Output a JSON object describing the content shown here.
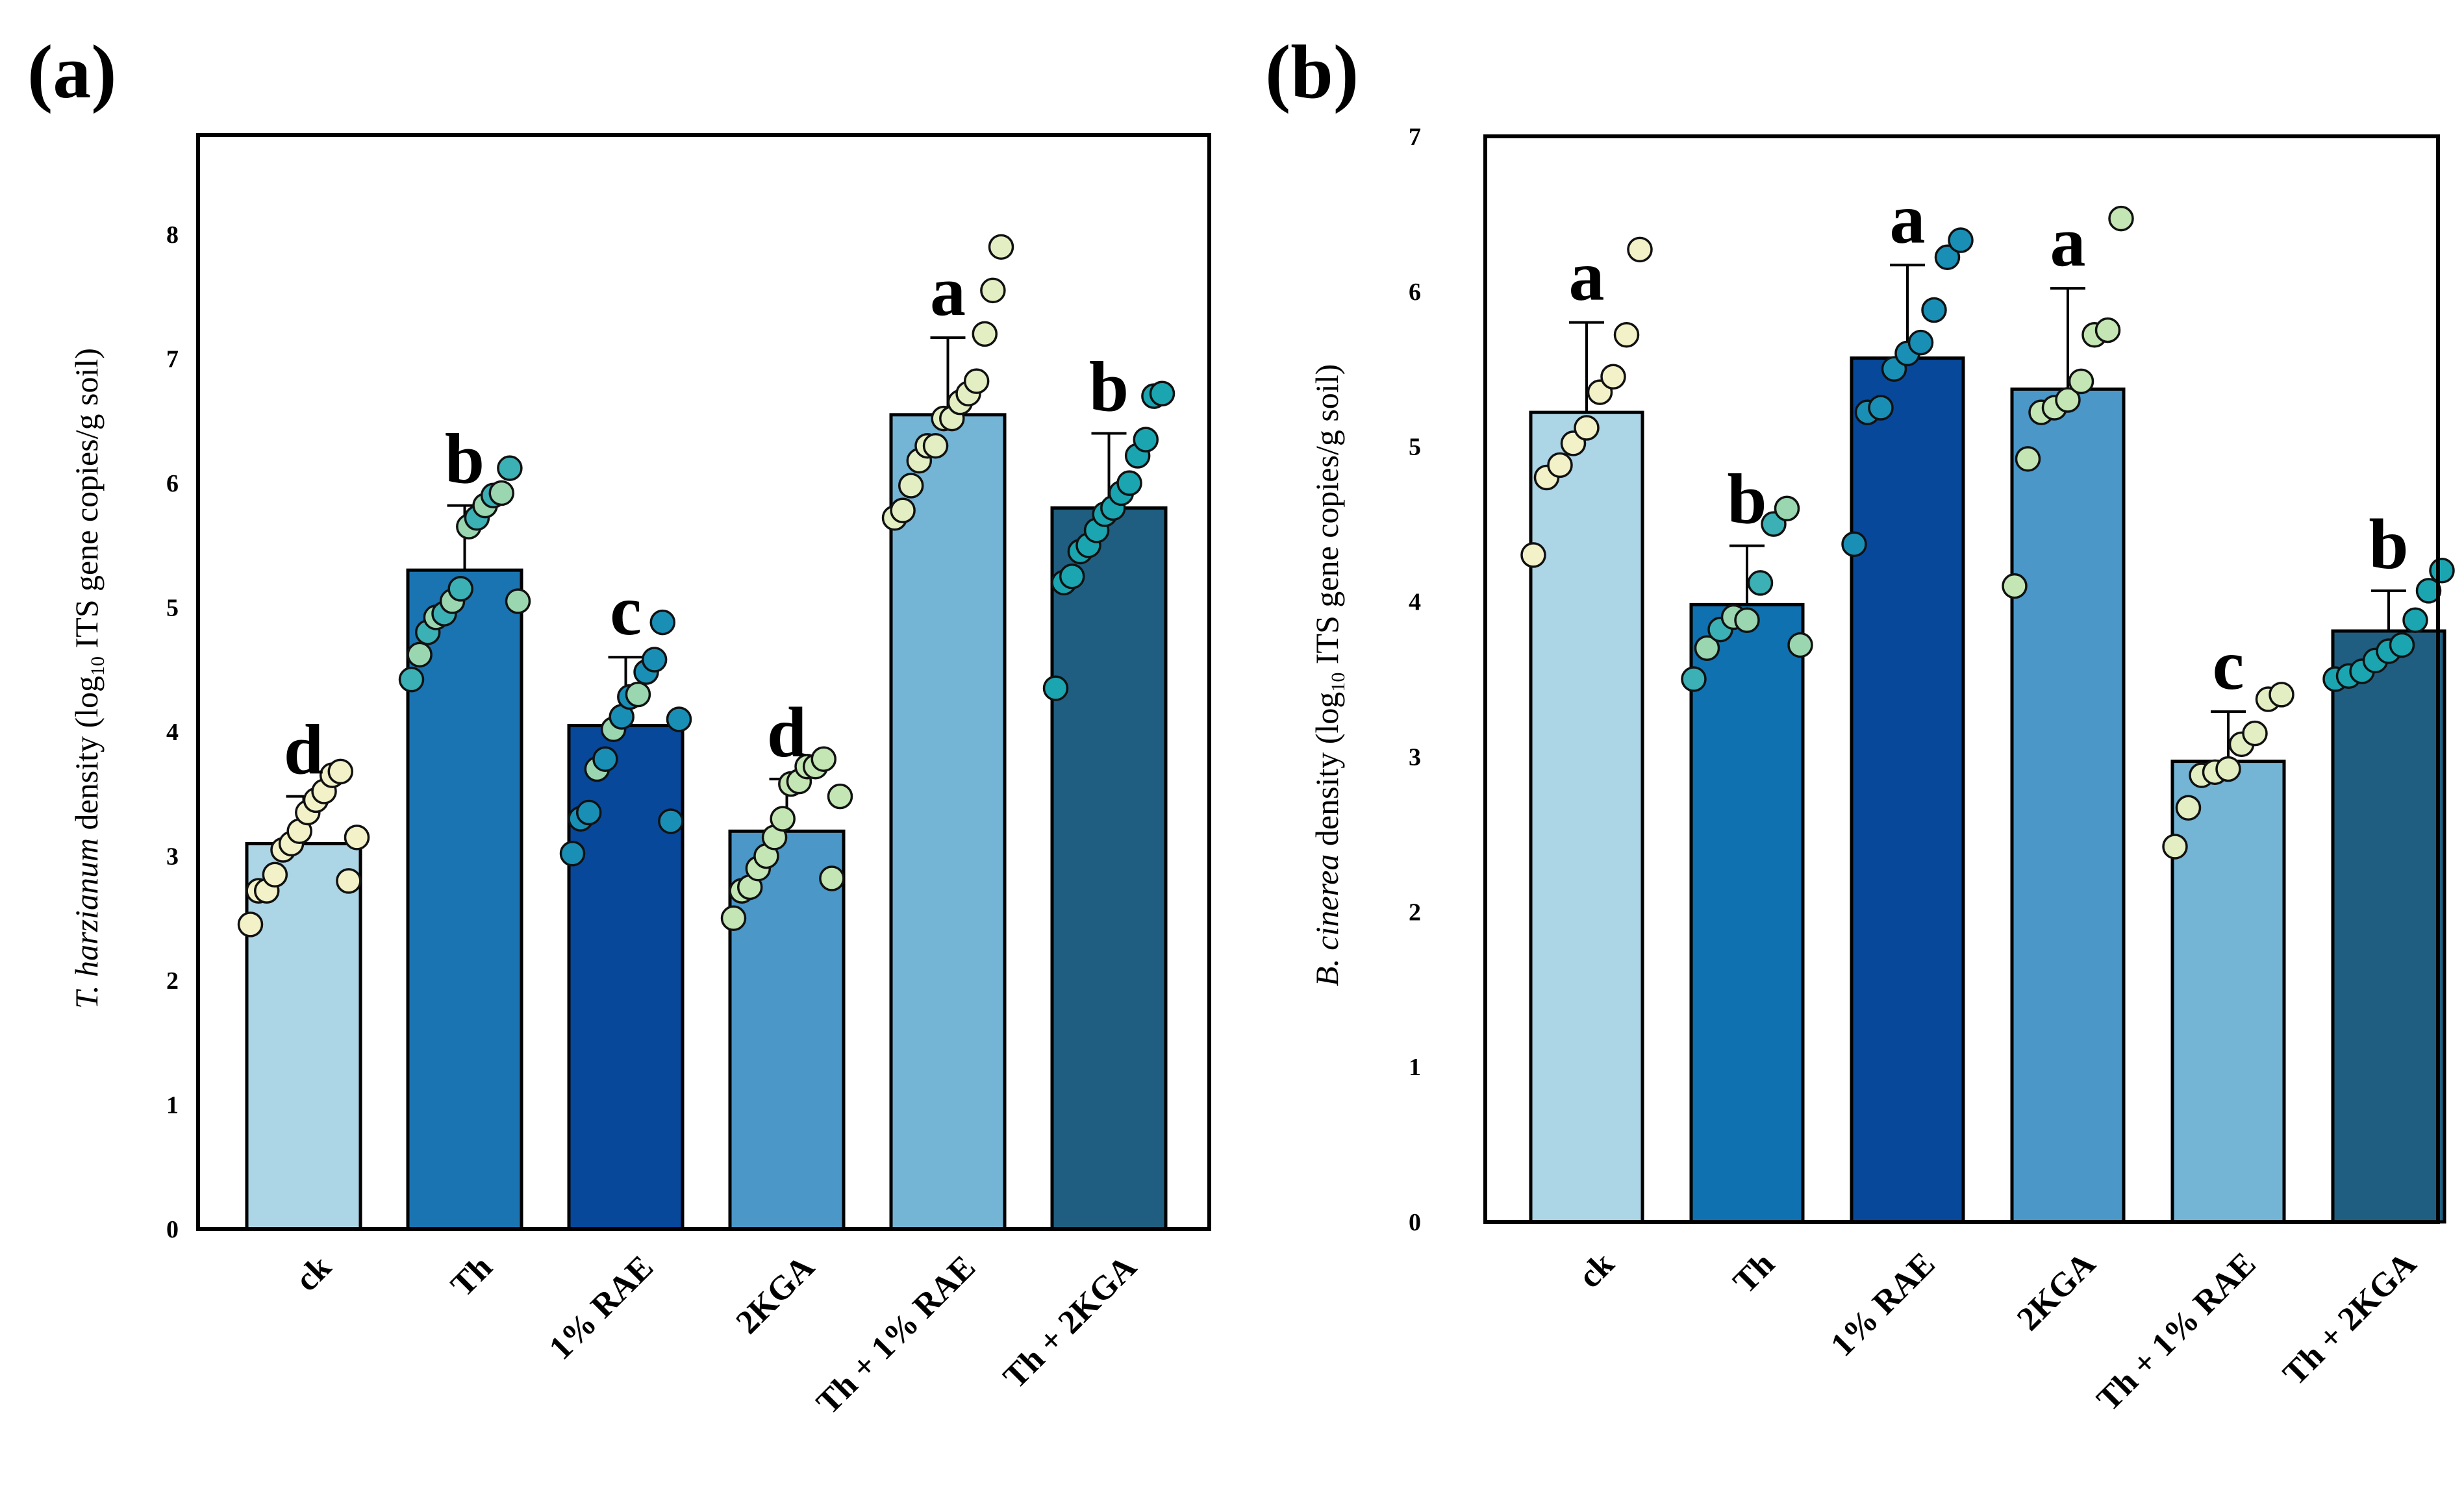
{
  "chart_data": [
    {
      "panel": "(a)",
      "type": "bar",
      "ylabel": {
        "italic": "T. harzianum",
        "text1": " density (log",
        "sub": "10",
        "text2": " ITS gene copies/g soil)"
      },
      "ylim": [
        0,
        8.8
      ],
      "yticks": [
        "0",
        "1",
        "2",
        "3",
        "4",
        "5",
        "6",
        "7",
        "8"
      ],
      "categories": [
        "ck",
        "Th",
        "1% RAE",
        "2KGA",
        "Th + 1% RAE",
        "Th + 2KGA"
      ],
      "values": [
        3.1,
        5.3,
        4.05,
        3.2,
        6.55,
        5.8
      ],
      "errors": [
        0.38,
        0.52,
        0.55,
        0.42,
        0.62,
        0.6
      ],
      "letters": [
        "d",
        "b",
        "c",
        "d",
        "a",
        "b"
      ],
      "bar_colors": [
        "#acd5e5",
        "#1a74b1",
        "#07489a",
        "#4a97c8",
        "#74b4d5",
        "#1f5e80"
      ],
      "points": [
        [
          2.45,
          2.72,
          2.72,
          2.85,
          3.05,
          3.1,
          3.2,
          3.35,
          3.45,
          3.52,
          3.65,
          3.68,
          2.8,
          3.15
        ],
        [
          4.42,
          4.62,
          4.8,
          4.92,
          4.95,
          5.05,
          5.15,
          5.65,
          5.72,
          5.82,
          5.9,
          5.92,
          6.12,
          5.05
        ],
        [
          3.02,
          3.3,
          3.35,
          3.7,
          3.78,
          4.02,
          4.12,
          4.28,
          4.3,
          4.48,
          4.58,
          4.88,
          3.28,
          4.1
        ],
        [
          2.5,
          2.72,
          2.75,
          2.9,
          3.0,
          3.15,
          3.3,
          3.58,
          3.6,
          3.72,
          3.72,
          3.78,
          2.82,
          3.48
        ],
        [
          5.72,
          5.78,
          5.98,
          6.18,
          6.3,
          6.3,
          6.52,
          6.52,
          6.65,
          6.72,
          6.82,
          7.2,
          7.55,
          7.9
        ],
        [
          4.35,
          5.2,
          5.25,
          5.45,
          5.5,
          5.62,
          5.75,
          5.8,
          5.92,
          6.0,
          6.22,
          6.35,
          6.7,
          6.72
        ]
      ],
      "point_colors": [
        [
          "#f3f1c7",
          "#f3f1c7",
          "#f3f1c7",
          "#f3f1c7",
          "#f3f1c7",
          "#f3f1c7",
          "#f3f1c7",
          "#f3f1c7",
          "#f3f1c7",
          "#f3f1c7",
          "#f3f1c7",
          "#f3f1c7",
          "#f3f1c7",
          "#f3f1c7"
        ],
        [
          "#3bb0b5",
          "#9ad6b0",
          "#3bb0b5",
          "#9ad6b0",
          "#3bb0b5",
          "#9ad6b0",
          "#3bb0b5",
          "#9ad6b0",
          "#3bb0b5",
          "#9ad6b0",
          "#3bb0b5",
          "#9ad6b0",
          "#3bb0b5",
          "#9ad6b0"
        ],
        [
          "#1a8fb5",
          "#1a8fb5",
          "#1a8fb5",
          "#9ad6b0",
          "#1a8fb5",
          "#9ad6b0",
          "#1a8fb5",
          "#1a8fb5",
          "#9ad6b0",
          "#1a8fb5",
          "#1a8fb5",
          "#1a8fb5",
          "#1a8fb5",
          "#1a8fb5"
        ],
        [
          "#c3e6b4",
          "#c3e6b4",
          "#c3e6b4",
          "#c3e6b4",
          "#c3e6b4",
          "#c3e6b4",
          "#c3e6b4",
          "#c3e6b4",
          "#c3e6b4",
          "#c3e6b4",
          "#c3e6b4",
          "#c3e6b4",
          "#c3e6b4",
          "#c3e6b4"
        ],
        [
          "#e3efc3",
          "#e3efc3",
          "#e3efc3",
          "#e3efc3",
          "#e3efc3",
          "#e3efc3",
          "#e3efc3",
          "#e3efc3",
          "#e3efc3",
          "#e3efc3",
          "#e3efc3",
          "#e3efc3",
          "#e3efc3",
          "#e3efc3"
        ],
        [
          "#1aa5b0",
          "#1aa5b0",
          "#1aa5b0",
          "#1aa5b0",
          "#1aa5b0",
          "#1aa5b0",
          "#1aa5b0",
          "#1aa5b0",
          "#1aa5b0",
          "#1aa5b0",
          "#1aa5b0",
          "#1aa5b0",
          "#1aa5b0",
          "#1aa5b0"
        ]
      ]
    },
    {
      "panel": "(b)",
      "type": "bar",
      "ylabel": {
        "italic": "B. cinerea",
        "text1": " density (log",
        "sub": "10",
        "text2": " ITS gene copies/g soil)"
      },
      "ylim": [
        0,
        7.0
      ],
      "yticks": [
        "0",
        "1",
        "2",
        "3",
        "4",
        "5",
        "6",
        "7"
      ],
      "categories": [
        "ck",
        "Th",
        "1% RAE",
        "2KGA",
        "Th + 1% RAE",
        "Th + 2KGA"
      ],
      "values": [
        5.22,
        3.98,
        5.57,
        5.37,
        2.97,
        3.81
      ],
      "errors": [
        0.58,
        0.38,
        0.6,
        0.65,
        0.32,
        0.26
      ],
      "letters": [
        "a",
        "b",
        "a",
        "a",
        "c",
        "b"
      ],
      "bar_colors": [
        "#acd5e5",
        "#0f71b0",
        "#07489a",
        "#4a97c8",
        "#74b4d5",
        "#1f5e80"
      ],
      "points": [
        [
          4.3,
          4.8,
          4.88,
          5.02,
          5.12,
          5.35,
          5.45,
          5.72,
          6.27
        ],
        [
          3.5,
          3.7,
          3.82,
          3.9,
          3.88,
          4.12,
          4.5,
          4.6,
          3.72
        ],
        [
          4.37,
          5.22,
          5.25,
          5.5,
          5.6,
          5.67,
          5.88,
          6.22,
          6.33
        ],
        [
          4.1,
          4.92,
          5.22,
          5.25,
          5.3,
          5.42,
          5.72,
          5.75,
          6.47
        ],
        [
          2.42,
          2.67,
          2.88,
          2.9,
          2.92,
          3.08,
          3.15,
          3.37,
          3.4
        ],
        [
          3.5,
          3.52,
          3.55,
          3.62,
          3.68,
          3.72,
          3.88,
          4.07,
          4.2
        ]
      ],
      "point_colors": [
        [
          "#f3f1c7",
          "#f3f1c7",
          "#f3f1c7",
          "#f3f1c7",
          "#f3f1c7",
          "#f3f1c7",
          "#f3f1c7",
          "#f3f1c7",
          "#f3f1c7"
        ],
        [
          "#3bb0b5",
          "#9ad6b0",
          "#3bb0b5",
          "#9ad6b0",
          "#9ad6b0",
          "#3bb0b5",
          "#3bb0b5",
          "#9ad6b0",
          "#9ad6b0"
        ],
        [
          "#1a8fb5",
          "#1a8fb5",
          "#1a8fb5",
          "#1a8fb5",
          "#1a8fb5",
          "#1a8fb5",
          "#1a8fb5",
          "#1a8fb5",
          "#1a8fb5"
        ],
        [
          "#c3e6b4",
          "#c3e6b4",
          "#c3e6b4",
          "#c3e6b4",
          "#c3e6b4",
          "#c3e6b4",
          "#c3e6b4",
          "#c3e6b4",
          "#c3e6b4"
        ],
        [
          "#e3efc3",
          "#e3efc3",
          "#e3efc3",
          "#e3efc3",
          "#e3efc3",
          "#e3efc3",
          "#e3efc3",
          "#e3efc3",
          "#e3efc3"
        ],
        [
          "#1aa5b0",
          "#1aa5b0",
          "#1aa5b0",
          "#1aa5b0",
          "#1aa5b0",
          "#1aa5b0",
          "#1aa5b0",
          "#1aa5b0",
          "#1aa5b0"
        ]
      ]
    }
  ]
}
